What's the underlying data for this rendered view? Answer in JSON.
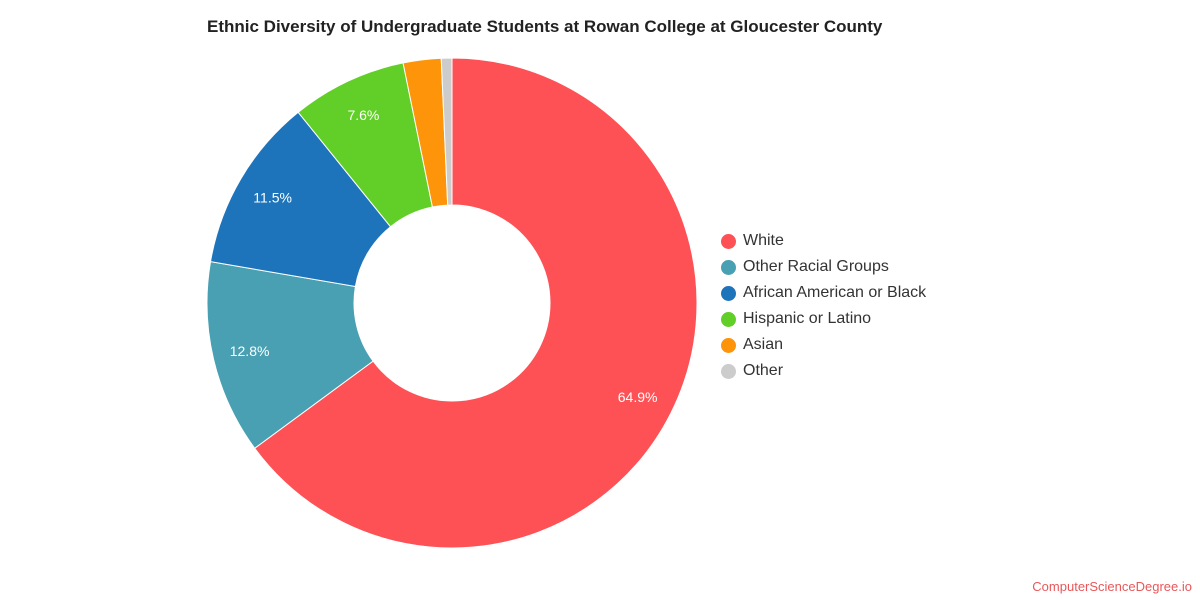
{
  "chart_data": {
    "type": "pie",
    "title": "Ethnic Diversity of Undergraduate Students at Rowan College at Gloucester County",
    "donut": true,
    "legend_position": "right",
    "slices": [
      {
        "name": "White",
        "value": 64.9,
        "label": "64.9%",
        "color": "#fd5155"
      },
      {
        "name": "Other Racial Groups",
        "value": 12.8,
        "label": "12.8%",
        "color": "#48a0b2"
      },
      {
        "name": "African American or Black",
        "value": 11.5,
        "label": "11.5%",
        "color": "#1e74bb"
      },
      {
        "name": "Hispanic or Latino",
        "value": 7.6,
        "label": "7.6%",
        "color": "#62ce28"
      },
      {
        "name": "Asian",
        "value": 2.5,
        "label": "",
        "color": "#fd9409"
      },
      {
        "name": "Other",
        "value": 0.7,
        "label": "",
        "color": "#cccccc"
      }
    ]
  },
  "footer": {
    "source": "ComputerScienceDegree.io"
  }
}
